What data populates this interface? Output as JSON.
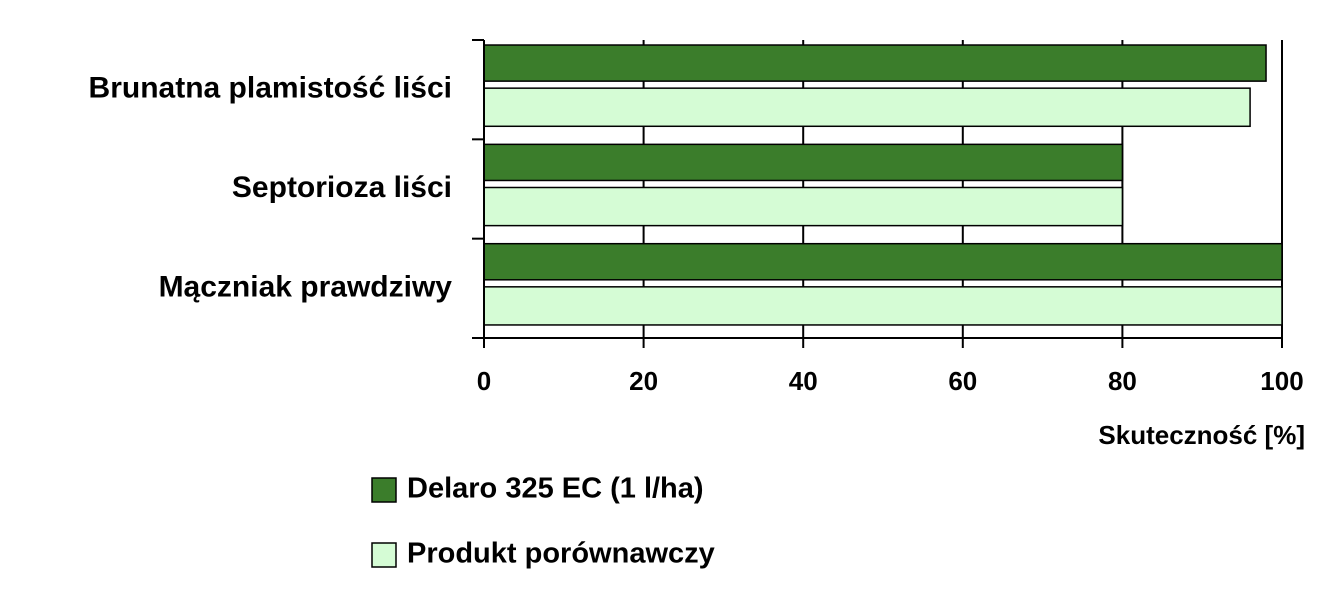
{
  "chart_data": {
    "type": "bar",
    "orientation": "horizontal",
    "categories": [
      "Brunatna plamistość liści",
      "Septorioza liści",
      "Mączniak prawdziwy"
    ],
    "series": [
      {
        "name": "Delaro 325 EC (1 l/ha)",
        "color": "#3b7d2b",
        "values": [
          98,
          80,
          100
        ]
      },
      {
        "name": "Produkt porównawczy",
        "color": "#d5fcd5",
        "values": [
          96,
          80,
          100
        ]
      }
    ],
    "xlabel": "Skuteczność [%]",
    "xlim": [
      0,
      100
    ],
    "xticks": [
      0,
      20,
      40,
      60,
      80,
      100
    ],
    "grid": true
  }
}
